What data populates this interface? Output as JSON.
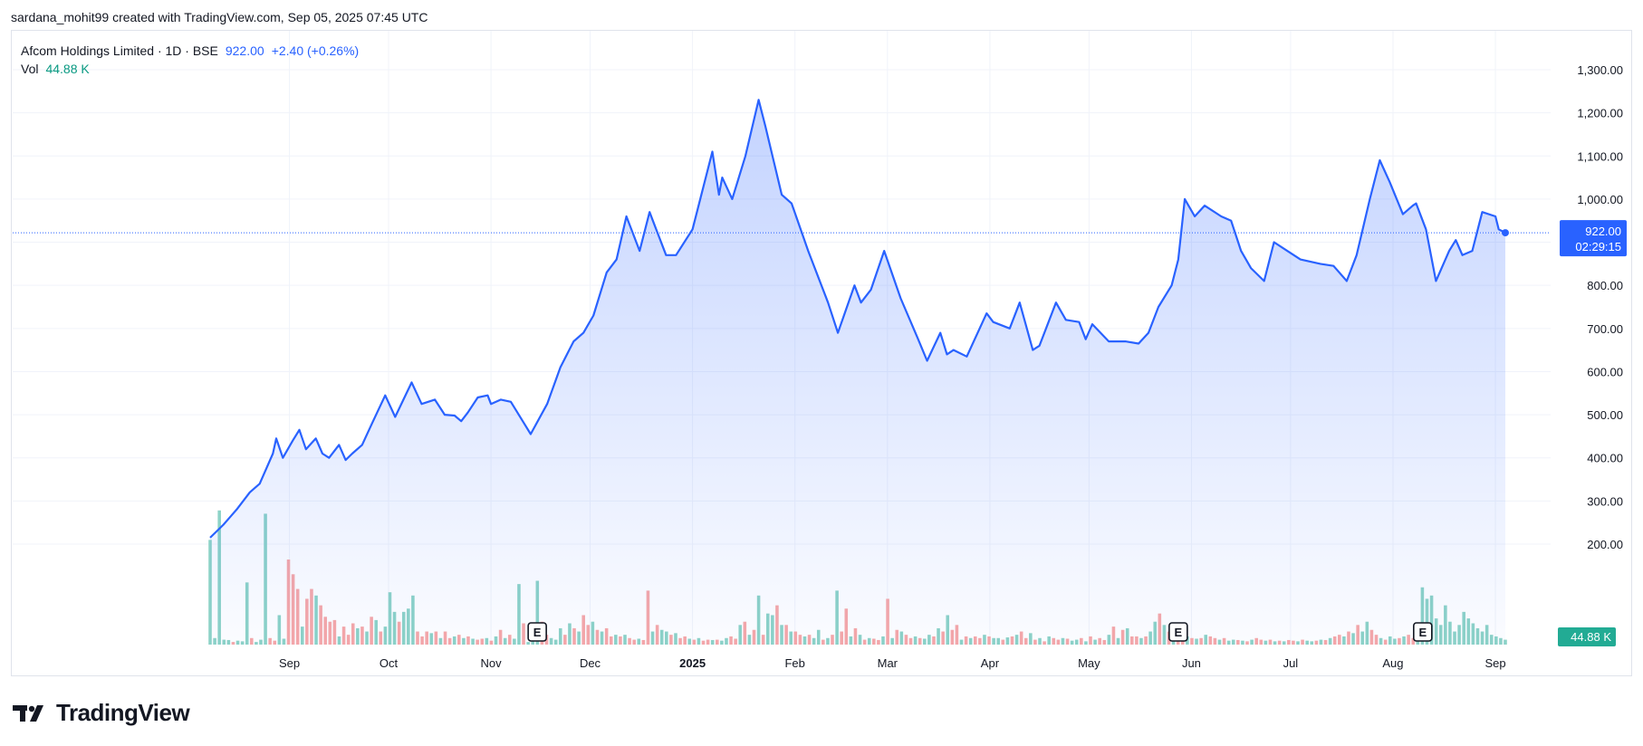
{
  "attribution": "sardana_mohit99 created with TradingView.com, Sep 05, 2025 07:45 UTC",
  "legend": {
    "symbol": "Afcom Holdings Limited · 1D · BSE",
    "last": "922.00",
    "change": "+2.40 (+0.26%)",
    "vol_label": "Vol",
    "vol_value": "44.88 K"
  },
  "brand": "TradingView",
  "colors": {
    "line": "#2962ff",
    "area_top": "rgba(41,98,255,0.28)",
    "area_bottom": "rgba(41,98,255,0.02)",
    "vol_up": "#8dd3c7",
    "vol_down": "#f7a8a8",
    "price_tag": "#2962ff",
    "vol_tag": "#22ab94",
    "grid": "#f0f3fa"
  },
  "chart_data": {
    "type": "area",
    "y_ticks": [
      "1,300.00",
      "1,200.00",
      "1,100.00",
      "1,000.00",
      "900.00",
      "800.00",
      "700.00",
      "600.00",
      "500.00",
      "400.00",
      "300.00",
      "200.00"
    ],
    "ylim": [
      100,
      1400
    ],
    "x_labels": [
      "Sep",
      "Oct",
      "Nov",
      "Dec",
      "2025",
      "Feb",
      "Mar",
      "Apr",
      "May",
      "Jun",
      "Jul",
      "Aug",
      "Sep"
    ],
    "x_label_dates": [
      "2024-09-01",
      "2024-10-01",
      "2024-11-01",
      "2024-12-01",
      "2025-01-01",
      "2025-02-01",
      "2025-03-01",
      "2025-04-01",
      "2025-05-01",
      "2025-06-01",
      "2025-07-01",
      "2025-08-01",
      "2025-09-01"
    ],
    "xlim": [
      "2024-08-08",
      "2025-09-25"
    ],
    "price_points": [
      [
        "2024-08-08",
        215
      ],
      [
        "2024-08-12",
        245
      ],
      [
        "2024-08-16",
        280
      ],
      [
        "2024-08-20",
        320
      ],
      [
        "2024-08-23",
        340
      ],
      [
        "2024-08-27",
        410
      ],
      [
        "2024-08-28",
        445
      ],
      [
        "2024-08-30",
        400
      ],
      [
        "2024-09-02",
        440
      ],
      [
        "2024-09-04",
        465
      ],
      [
        "2024-09-06",
        420
      ],
      [
        "2024-09-09",
        445
      ],
      [
        "2024-09-11",
        410
      ],
      [
        "2024-09-13",
        400
      ],
      [
        "2024-09-16",
        430
      ],
      [
        "2024-09-18",
        395
      ],
      [
        "2024-09-20",
        410
      ],
      [
        "2024-09-23",
        430
      ],
      [
        "2024-09-26",
        480
      ],
      [
        "2024-09-30",
        545
      ],
      [
        "2024-10-03",
        495
      ],
      [
        "2024-10-08",
        575
      ],
      [
        "2024-10-11",
        525
      ],
      [
        "2024-10-15",
        535
      ],
      [
        "2024-10-18",
        500
      ],
      [
        "2024-10-21",
        498
      ],
      [
        "2024-10-23",
        485
      ],
      [
        "2024-10-25",
        505
      ],
      [
        "2024-10-28",
        540
      ],
      [
        "2024-10-31",
        545
      ],
      [
        "2024-11-01",
        525
      ],
      [
        "2024-11-04",
        535
      ],
      [
        "2024-11-07",
        530
      ],
      [
        "2024-11-11",
        480
      ],
      [
        "2024-11-13",
        455
      ],
      [
        "2024-11-18",
        525
      ],
      [
        "2024-11-22",
        610
      ],
      [
        "2024-11-26",
        670
      ],
      [
        "2024-11-29",
        690
      ],
      [
        "2024-12-02",
        730
      ],
      [
        "2024-12-06",
        830
      ],
      [
        "2024-12-09",
        860
      ],
      [
        "2024-12-12",
        960
      ],
      [
        "2024-12-16",
        880
      ],
      [
        "2024-12-19",
        970
      ],
      [
        "2024-12-20",
        950
      ],
      [
        "2024-12-24",
        870
      ],
      [
        "2024-12-27",
        870
      ],
      [
        "2025-01-01",
        930
      ],
      [
        "2025-01-07",
        1110
      ],
      [
        "2025-01-09",
        1010
      ],
      [
        "2025-01-10",
        1050
      ],
      [
        "2025-01-13",
        1000
      ],
      [
        "2025-01-17",
        1100
      ],
      [
        "2025-01-21",
        1230
      ],
      [
        "2025-01-23",
        1170
      ],
      [
        "2025-01-28",
        1010
      ],
      [
        "2025-01-31",
        990
      ],
      [
        "2025-02-05",
        880
      ],
      [
        "2025-02-11",
        760
      ],
      [
        "2025-02-14",
        690
      ],
      [
        "2025-02-19",
        800
      ],
      [
        "2025-02-21",
        760
      ],
      [
        "2025-02-24",
        790
      ],
      [
        "2025-02-28",
        880
      ],
      [
        "2025-03-05",
        770
      ],
      [
        "2025-03-10",
        680
      ],
      [
        "2025-03-13",
        625
      ],
      [
        "2025-03-17",
        690
      ],
      [
        "2025-03-19",
        640
      ],
      [
        "2025-03-21",
        650
      ],
      [
        "2025-03-25",
        635
      ],
      [
        "2025-03-31",
        735
      ],
      [
        "2025-04-02",
        715
      ],
      [
        "2025-04-07",
        700
      ],
      [
        "2025-04-10",
        760
      ],
      [
        "2025-04-14",
        650
      ],
      [
        "2025-04-16",
        660
      ],
      [
        "2025-04-21",
        760
      ],
      [
        "2025-04-24",
        720
      ],
      [
        "2025-04-28",
        715
      ],
      [
        "2025-04-30",
        675
      ],
      [
        "2025-05-02",
        710
      ],
      [
        "2025-05-07",
        670
      ],
      [
        "2025-05-12",
        670
      ],
      [
        "2025-05-16",
        665
      ],
      [
        "2025-05-19",
        690
      ],
      [
        "2025-05-22",
        750
      ],
      [
        "2025-05-26",
        800
      ],
      [
        "2025-05-28",
        860
      ],
      [
        "2025-05-30",
        1000
      ],
      [
        "2025-06-02",
        960
      ],
      [
        "2025-06-05",
        985
      ],
      [
        "2025-06-10",
        960
      ],
      [
        "2025-06-13",
        950
      ],
      [
        "2025-06-16",
        880
      ],
      [
        "2025-06-19",
        840
      ],
      [
        "2025-06-23",
        810
      ],
      [
        "2025-06-26",
        900
      ],
      [
        "2025-06-30",
        880
      ],
      [
        "2025-07-04",
        860
      ],
      [
        "2025-07-10",
        850
      ],
      [
        "2025-07-14",
        845
      ],
      [
        "2025-07-18",
        810
      ],
      [
        "2025-07-21",
        870
      ],
      [
        "2025-07-25",
        1000
      ],
      [
        "2025-07-28",
        1090
      ],
      [
        "2025-07-31",
        1040
      ],
      [
        "2025-08-04",
        965
      ],
      [
        "2025-08-07",
        985
      ],
      [
        "2025-08-08",
        990
      ],
      [
        "2025-08-11",
        930
      ],
      [
        "2025-08-14",
        810
      ],
      [
        "2025-08-18",
        880
      ],
      [
        "2025-08-20",
        905
      ],
      [
        "2025-08-22",
        870
      ],
      [
        "2025-08-25",
        880
      ],
      [
        "2025-08-28",
        970
      ],
      [
        "2025-09-01",
        960
      ],
      [
        "2025-09-02",
        930
      ],
      [
        "2025-09-04",
        922
      ]
    ],
    "volume_series": [
      320,
      20,
      410,
      15,
      14,
      8,
      12,
      10,
      190,
      20,
      8,
      15,
      400,
      20,
      12,
      90,
      18,
      260,
      215,
      170,
      55,
      140,
      170,
      150,
      120,
      85,
      70,
      75,
      25,
      55,
      30,
      65,
      50,
      55,
      40,
      85,
      75,
      40,
      55,
      160,
      100,
      70,
      100,
      110,
      150,
      40,
      25,
      40,
      35,
      40,
      20,
      40,
      20,
      25,
      30,
      20,
      25,
      18,
      15,
      18,
      20,
      12,
      25,
      45,
      20,
      30,
      18,
      185,
      65,
      8,
      10,
      195,
      70,
      30,
      20,
      15,
      50,
      30,
      65,
      50,
      40,
      90,
      60,
      70,
      45,
      40,
      50,
      25,
      30,
      25,
      30,
      20,
      15,
      18,
      14,
      165,
      40,
      60,
      45,
      40,
      30,
      35,
      20,
      25,
      18,
      15,
      20,
      12,
      15,
      14,
      15,
      12,
      20,
      25,
      18,
      60,
      70,
      30,
      45,
      150,
      30,
      95,
      90,
      120,
      60,
      60,
      40,
      40,
      30,
      25,
      30,
      20,
      45,
      15,
      20,
      30,
      165,
      40,
      110,
      25,
      50,
      30,
      15,
      20,
      18,
      14,
      25,
      140,
      20,
      45,
      40,
      30,
      20,
      25,
      20,
      18,
      30,
      25,
      50,
      40,
      90,
      45,
      60,
      15,
      25,
      20,
      25,
      20,
      30,
      25,
      20,
      20,
      15,
      22,
      25,
      30,
      40,
      20,
      35,
      15,
      20,
      10,
      25,
      20,
      15,
      20,
      18,
      12,
      15,
      20,
      10,
      25,
      15,
      20,
      14,
      30,
      55,
      20,
      45,
      50,
      25,
      25,
      20,
      25,
      40,
      70,
      95,
      60,
      40,
      35,
      20,
      15,
      25,
      20,
      18,
      20,
      30,
      25,
      20,
      15,
      20,
      12,
      15,
      14,
      12,
      10,
      15,
      20,
      15,
      12,
      15,
      10,
      12,
      10,
      14,
      12,
      10,
      15,
      12,
      10,
      12,
      15,
      14,
      20,
      25,
      30,
      25,
      40,
      35,
      60,
      40,
      70,
      45,
      30,
      20,
      15,
      25,
      18,
      20,
      25,
      30,
      20,
      15,
      175,
      140,
      150,
      80,
      60,
      120,
      70,
      40,
      60,
      100,
      80,
      65,
      50,
      40,
      60,
      30,
      25,
      20,
      15
    ],
    "volume_down_mask": [
      0,
      0,
      0,
      0,
      0,
      1,
      0,
      0,
      0,
      1,
      0,
      0,
      0,
      1,
      1,
      0,
      0,
      1,
      1,
      1,
      0,
      1,
      1,
      0,
      1,
      1,
      1,
      1,
      0,
      1,
      1,
      1,
      0,
      1,
      0,
      1,
      0,
      1,
      0,
      0,
      0,
      1,
      0,
      0,
      0,
      1,
      1,
      1,
      0,
      1,
      0,
      1,
      1,
      0,
      1,
      0,
      1,
      0,
      1,
      1,
      0,
      1,
      0,
      1,
      0,
      1,
      0,
      0,
      1,
      0,
      0,
      0,
      1,
      1,
      0,
      0,
      0,
      1,
      0,
      1,
      0,
      1,
      1,
      0,
      1,
      0,
      1,
      1,
      0,
      1,
      0,
      1,
      1,
      0,
      1,
      1,
      0,
      1,
      0,
      0,
      1,
      0,
      1,
      1,
      0,
      1,
      0,
      1,
      1,
      0,
      1,
      0,
      0,
      1,
      1,
      0,
      1,
      0,
      1,
      0,
      1,
      0,
      0,
      1,
      0,
      1,
      0,
      1,
      1,
      0,
      1,
      0,
      0,
      1,
      0,
      1,
      0,
      1,
      1,
      0,
      1,
      0,
      1,
      0,
      1,
      1,
      0,
      1,
      0,
      1,
      0,
      1,
      1,
      0,
      1,
      0,
      0,
      1,
      0,
      1,
      0,
      1,
      1,
      0,
      1,
      0,
      1,
      1,
      0,
      1,
      0,
      0,
      1,
      0,
      1,
      0,
      1,
      1,
      0,
      1,
      0,
      1,
      0,
      1,
      1,
      0,
      1,
      0,
      0,
      1,
      0,
      1,
      0,
      1,
      1,
      0,
      1,
      0,
      1,
      0,
      1,
      1,
      0,
      1,
      0,
      0,
      1,
      0,
      1,
      0,
      1,
      1,
      0,
      1,
      0,
      1,
      0,
      1,
      1,
      0,
      1,
      0,
      0,
      1,
      0,
      1,
      0,
      1,
      1,
      0,
      1,
      0,
      1,
      0,
      1,
      1,
      0,
      1,
      0,
      0,
      1,
      0,
      1,
      0,
      1,
      1,
      0,
      1,
      0,
      1,
      0,
      0,
      1,
      1,
      0,
      1,
      0,
      0,
      1,
      0,
      1,
      1,
      0
    ],
    "events": [
      {
        "date": "2024-11-15",
        "label": "E"
      },
      {
        "date": "2025-05-28",
        "label": "E"
      },
      {
        "date": "2025-08-10",
        "label": "E"
      }
    ],
    "last_value": 922,
    "price_tag": "922.00",
    "countdown": "02:29:15",
    "volume_tag": "44.88 K",
    "grid": true
  }
}
